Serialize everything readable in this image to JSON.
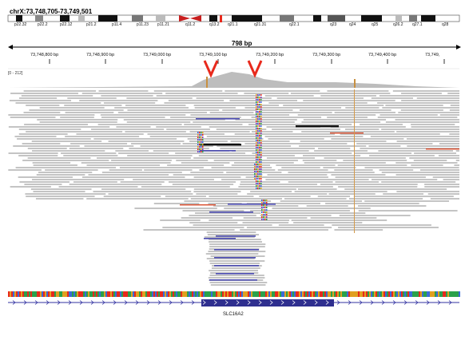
{
  "locus": "chrX:73,748,705-73,749,501",
  "range_width": "798 bp",
  "coverage_scale": "[0 - 212]",
  "gene_name": "SLC16A2",
  "ideogram_bands": [
    "p22.32",
    "p22.2",
    "p22.12",
    "p21.2",
    "p11.4",
    "p11.23",
    "p11.21",
    "q11.2",
    "q13.2",
    "q21.1",
    "q21.31",
    "q22.1",
    "q23",
    "q24",
    "q25",
    "q26.2",
    "q27.1",
    "q28"
  ],
  "ruler_ticks": [
    "73,748,800 bp",
    "73,748,900 bp",
    "73,749,000 bp",
    "73,749,100 bp",
    "73,749,200 bp",
    "73,749,300 bp",
    "73,749,400 bp",
    "73,749,"
  ],
  "colors": {
    "read": "#c4c4c4",
    "coverage": "#bdbdbd",
    "marker": "#e8291c",
    "gene": "#2f2f8f",
    "dark_read": "#4a4ab0",
    "black_read": "#111111",
    "accent_red": "#d84a2a"
  }
}
